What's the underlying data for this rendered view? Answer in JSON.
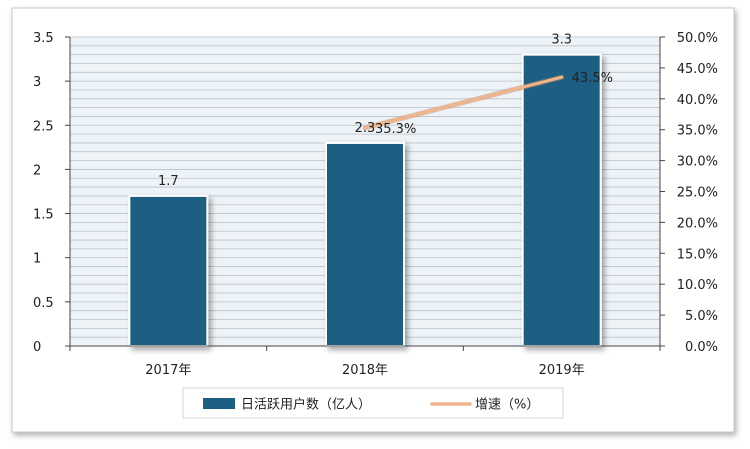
{
  "chart_data": {
    "type": "bar+line",
    "categories": [
      "2017年",
      "2018年",
      "2019年"
    ],
    "series": [
      {
        "name": "日活跃用户数（亿人）",
        "type": "bar",
        "axis": "left",
        "values": [
          1.7,
          2.3,
          3.3
        ],
        "data_labels": [
          "1.7",
          "2.3",
          "3.3"
        ],
        "color": "#1b5f82"
      },
      {
        "name": "增速（%）",
        "type": "line",
        "axis": "right",
        "values": [
          null,
          35.3,
          43.5
        ],
        "data_labels": [
          "",
          "35.3%",
          "43.5%"
        ],
        "color": "#f0b48a"
      }
    ],
    "y_left": {
      "min": 0,
      "max": 3.5,
      "ticks": [
        "0",
        "0.5",
        "1",
        "1.5",
        "2",
        "2.5",
        "3",
        "3.5"
      ]
    },
    "y_right": {
      "min": 0,
      "max": 50,
      "ticks": [
        "0.0%",
        "5.0%",
        "10.0%",
        "15.0%",
        "20.0%",
        "25.0%",
        "30.0%",
        "35.0%",
        "40.0%",
        "45.0%",
        "50.0%"
      ]
    },
    "grid": true,
    "legend": "bottom-center",
    "colors": {
      "plot_background": "#eef3f7",
      "gridline": "#b7c2cc",
      "axis": "#444444"
    }
  }
}
